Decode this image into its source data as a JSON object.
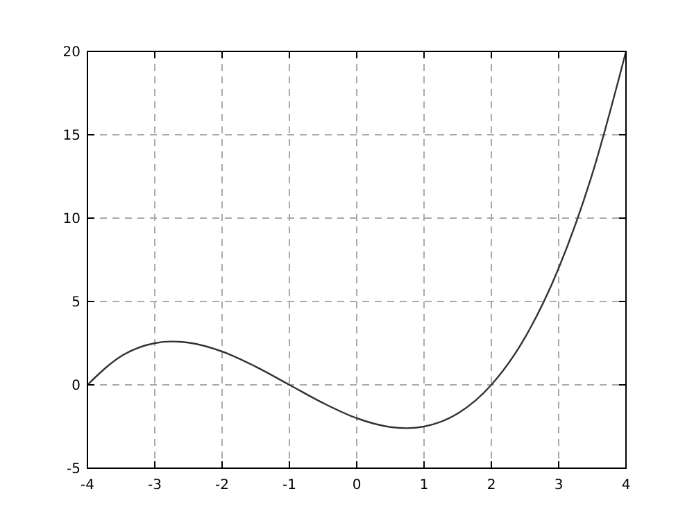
{
  "chart_data": {
    "type": "line",
    "x": [
      -4,
      -3.5,
      -3,
      -2.75,
      -2.5,
      -2,
      -1.5,
      -1,
      -0.5,
      0,
      0.5,
      0.75,
      1,
      1.5,
      2,
      2.5,
      3,
      3.5,
      4
    ],
    "series": [
      {
        "color": "#333333",
        "values": [
          0,
          1.72,
          2.5,
          2.6,
          2.53,
          2,
          1.09,
          0,
          -1.09,
          -2,
          -2.53,
          -2.6,
          -2.5,
          -1.72,
          0,
          2.84,
          7,
          12.66,
          20
        ]
      }
    ],
    "xlim": [
      -4,
      4
    ],
    "ylim": [
      -5,
      20
    ],
    "xticks": [
      -4,
      -3,
      -2,
      -1,
      0,
      1,
      2,
      3,
      4
    ],
    "yticks": [
      -5,
      0,
      5,
      10,
      15,
      20
    ],
    "grid": true,
    "marker": "none",
    "line_style": "solid"
  }
}
